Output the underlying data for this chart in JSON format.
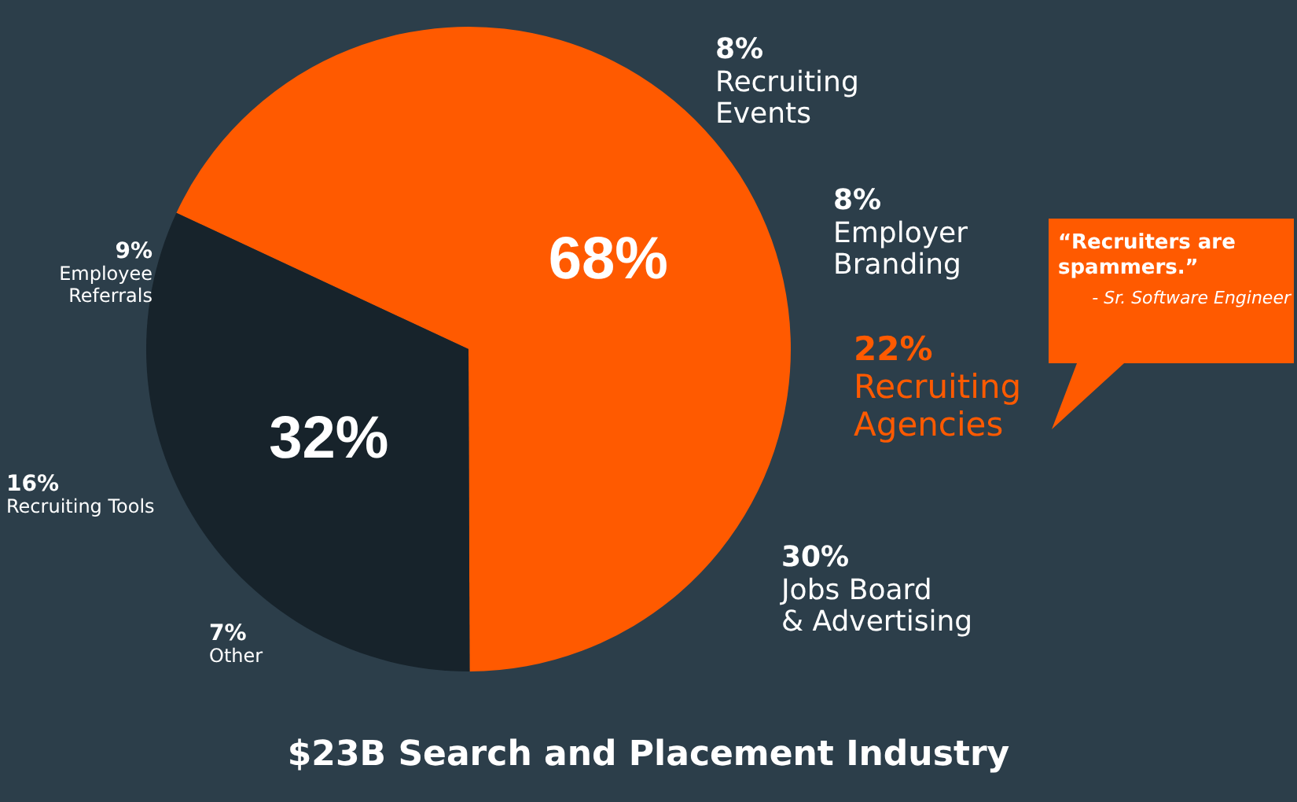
{
  "chart_data": {
    "type": "pie",
    "title": "$23B Search and Placement Industry",
    "categories": [
      null,
      null
    ],
    "values": [
      68,
      32
    ],
    "colors": [
      "#ff5a00",
      "#17232b"
    ],
    "value_labels": [
      "68%",
      "32%"
    ],
    "annotations": [
      "8%\nRecruiting\nEvents",
      "8%\nEmployer\nBranding",
      "22%\nRecruiting\nAgencies",
      "30%\nJobs Board\n& Advertising",
      "9%\nEmployee\nReferrals",
      "16%\nRecruiting Tools",
      "7%\nOther",
      "“Recruiters are spammers.”\n- Sr. Software Engineer"
    ]
  }
}
